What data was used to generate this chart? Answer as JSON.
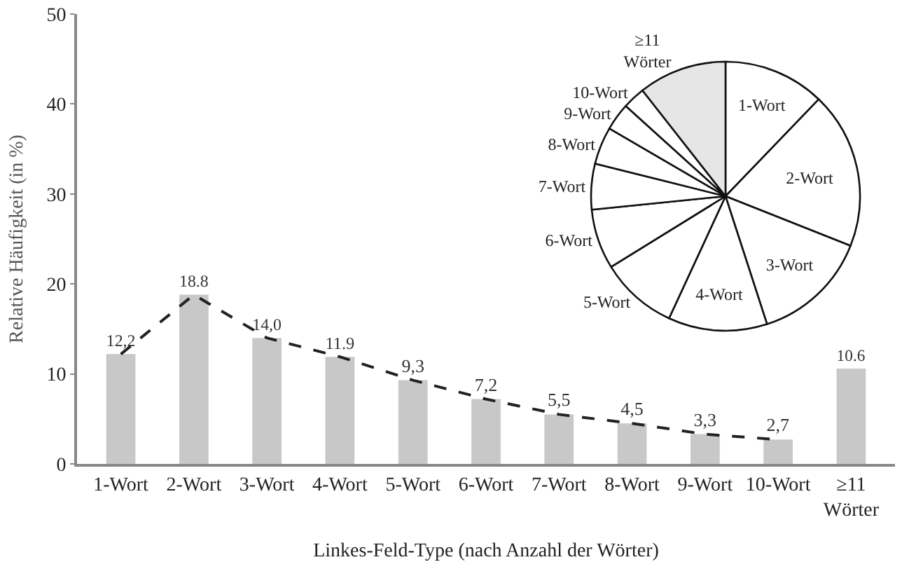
{
  "chart_data": [
    {
      "type": "bar",
      "xlabel": "Linkes-Feld-Type (nach Anzahl der Wörter)",
      "ylabel": "Relative Häufigkeit (in %)",
      "categories": [
        "1-Wort",
        "2-Wort",
        "3-Wort",
        "4-Wort",
        "5-Wort",
        "6-Wort",
        "7-Wort",
        "8-Wort",
        "9-Wort",
        "10-Wort",
        "≥11\nWörter"
      ],
      "series": [
        {
          "type": "bar",
          "color": "#c8c8c8",
          "values": [
            12.2,
            18.8,
            14.0,
            11.9,
            9.3,
            7.2,
            5.5,
            4.5,
            3.3,
            2.7,
            10.6
          ],
          "value_labels": [
            "12,2",
            "18.8",
            "14,0",
            "11.9",
            "9,3",
            "7,2",
            "5,5",
            "4,5",
            "3,3",
            "2,7",
            "10.6"
          ]
        },
        {
          "type": "line",
          "color": "#222222",
          "line_style": "dashed",
          "marker": "none",
          "values": [
            12.2,
            18.8,
            14.0,
            11.9,
            9.3,
            7.2,
            5.5,
            4.5,
            3.3,
            2.7,
            null
          ]
        }
      ],
      "ylim": [
        0,
        50
      ],
      "yticks": [
        0,
        10,
        20,
        30,
        40,
        50
      ],
      "grid": false,
      "legend": false
    },
    {
      "type": "pie",
      "categories": [
        "1-Wort",
        "2-Wort",
        "3-Wort",
        "4-Wort",
        "5-Wort",
        "6-Wort",
        "7-Wort",
        "8-Wort",
        "9-Wort",
        "10-Wort",
        "≥11\nWörter"
      ],
      "values": [
        12.2,
        18.8,
        14.0,
        11.9,
        9.3,
        7.2,
        5.5,
        4.5,
        3.3,
        2.7,
        10.6
      ],
      "colors": [
        "#ffffff",
        "#ffffff",
        "#ffffff",
        "#ffffff",
        "#ffffff",
        "#ffffff",
        "#ffffff",
        "#ffffff",
        "#ffffff",
        "#ffffff",
        "#e6e6e6"
      ],
      "legend": false
    }
  ]
}
